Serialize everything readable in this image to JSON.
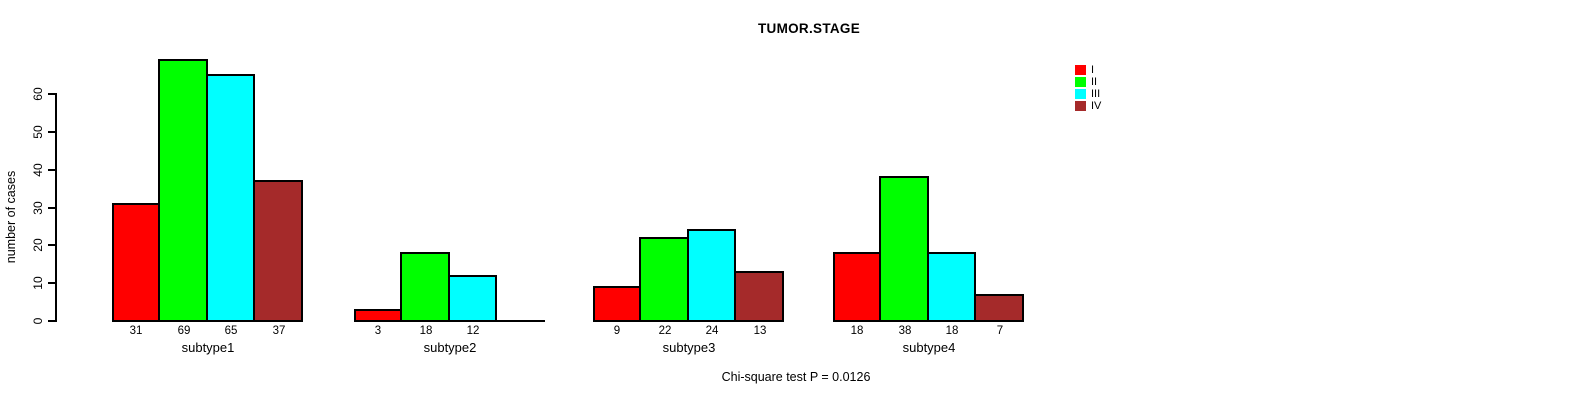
{
  "chart_data": {
    "type": "bar",
    "title": "TUMOR.STAGE",
    "ylabel": "number of cases",
    "footer": "Chi-square test P = 0.0126",
    "ylim": [
      0,
      70
    ],
    "yticks": [
      0,
      10,
      20,
      30,
      40,
      50,
      60
    ],
    "grid": false,
    "legend_position": "top-right",
    "categories": [
      "subtype1",
      "subtype2",
      "subtype3",
      "subtype4"
    ],
    "series": [
      {
        "name": "I",
        "color": "#FF0000",
        "values": [
          31,
          3,
          9,
          18
        ]
      },
      {
        "name": "II",
        "color": "#00FF00",
        "values": [
          69,
          18,
          22,
          38
        ]
      },
      {
        "name": "III",
        "color": "#00FFFF",
        "values": [
          65,
          12,
          24,
          18
        ]
      },
      {
        "name": "IV",
        "color": "#A52A2A",
        "values": [
          37,
          0,
          13,
          7
        ]
      }
    ],
    "bar_value_labels": [
      [
        "31",
        "69",
        "65",
        "37"
      ],
      [
        "3",
        "18",
        "12",
        ""
      ],
      [
        "9",
        "22",
        "24",
        "13"
      ],
      [
        "18",
        "38",
        "18",
        "7"
      ]
    ],
    "colors": {
      "background": "#FFFFFF",
      "axis": "#000000",
      "bar_border": "#000000"
    }
  }
}
